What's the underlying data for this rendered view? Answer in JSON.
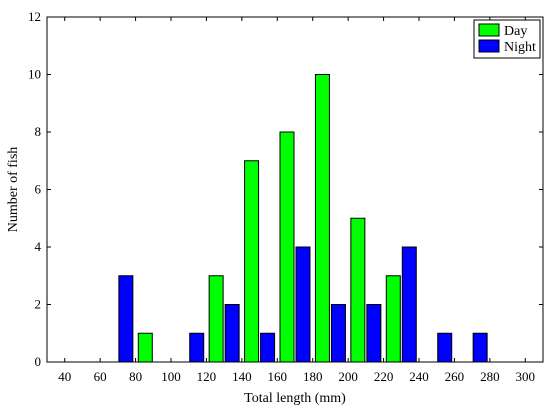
{
  "chart_data": {
    "type": "bar",
    "xlabel": "Total length (mm)",
    "ylabel": "Number of fish",
    "xlim": [
      30,
      310
    ],
    "ylim": [
      0,
      12
    ],
    "x_ticks": [
      40,
      60,
      80,
      100,
      120,
      140,
      160,
      180,
      200,
      220,
      240,
      260,
      280,
      300
    ],
    "y_ticks": [
      0,
      2,
      4,
      6,
      8,
      10,
      12
    ],
    "bin_centers": [
      70,
      90,
      110,
      130,
      150,
      170,
      190,
      210,
      230,
      250,
      270,
      290
    ],
    "series": [
      {
        "name": "Day",
        "color": "#00ff00",
        "values": [
          0,
          1,
          0,
          3,
          7,
          8,
          10,
          5,
          3,
          0,
          0,
          0
        ]
      },
      {
        "name": "Night",
        "color": "#0000ff",
        "values": [
          3,
          0,
          1,
          2,
          1,
          4,
          2,
          2,
          4,
          1,
          1,
          0
        ]
      }
    ],
    "grid": false,
    "legend_position": "top-right"
  }
}
